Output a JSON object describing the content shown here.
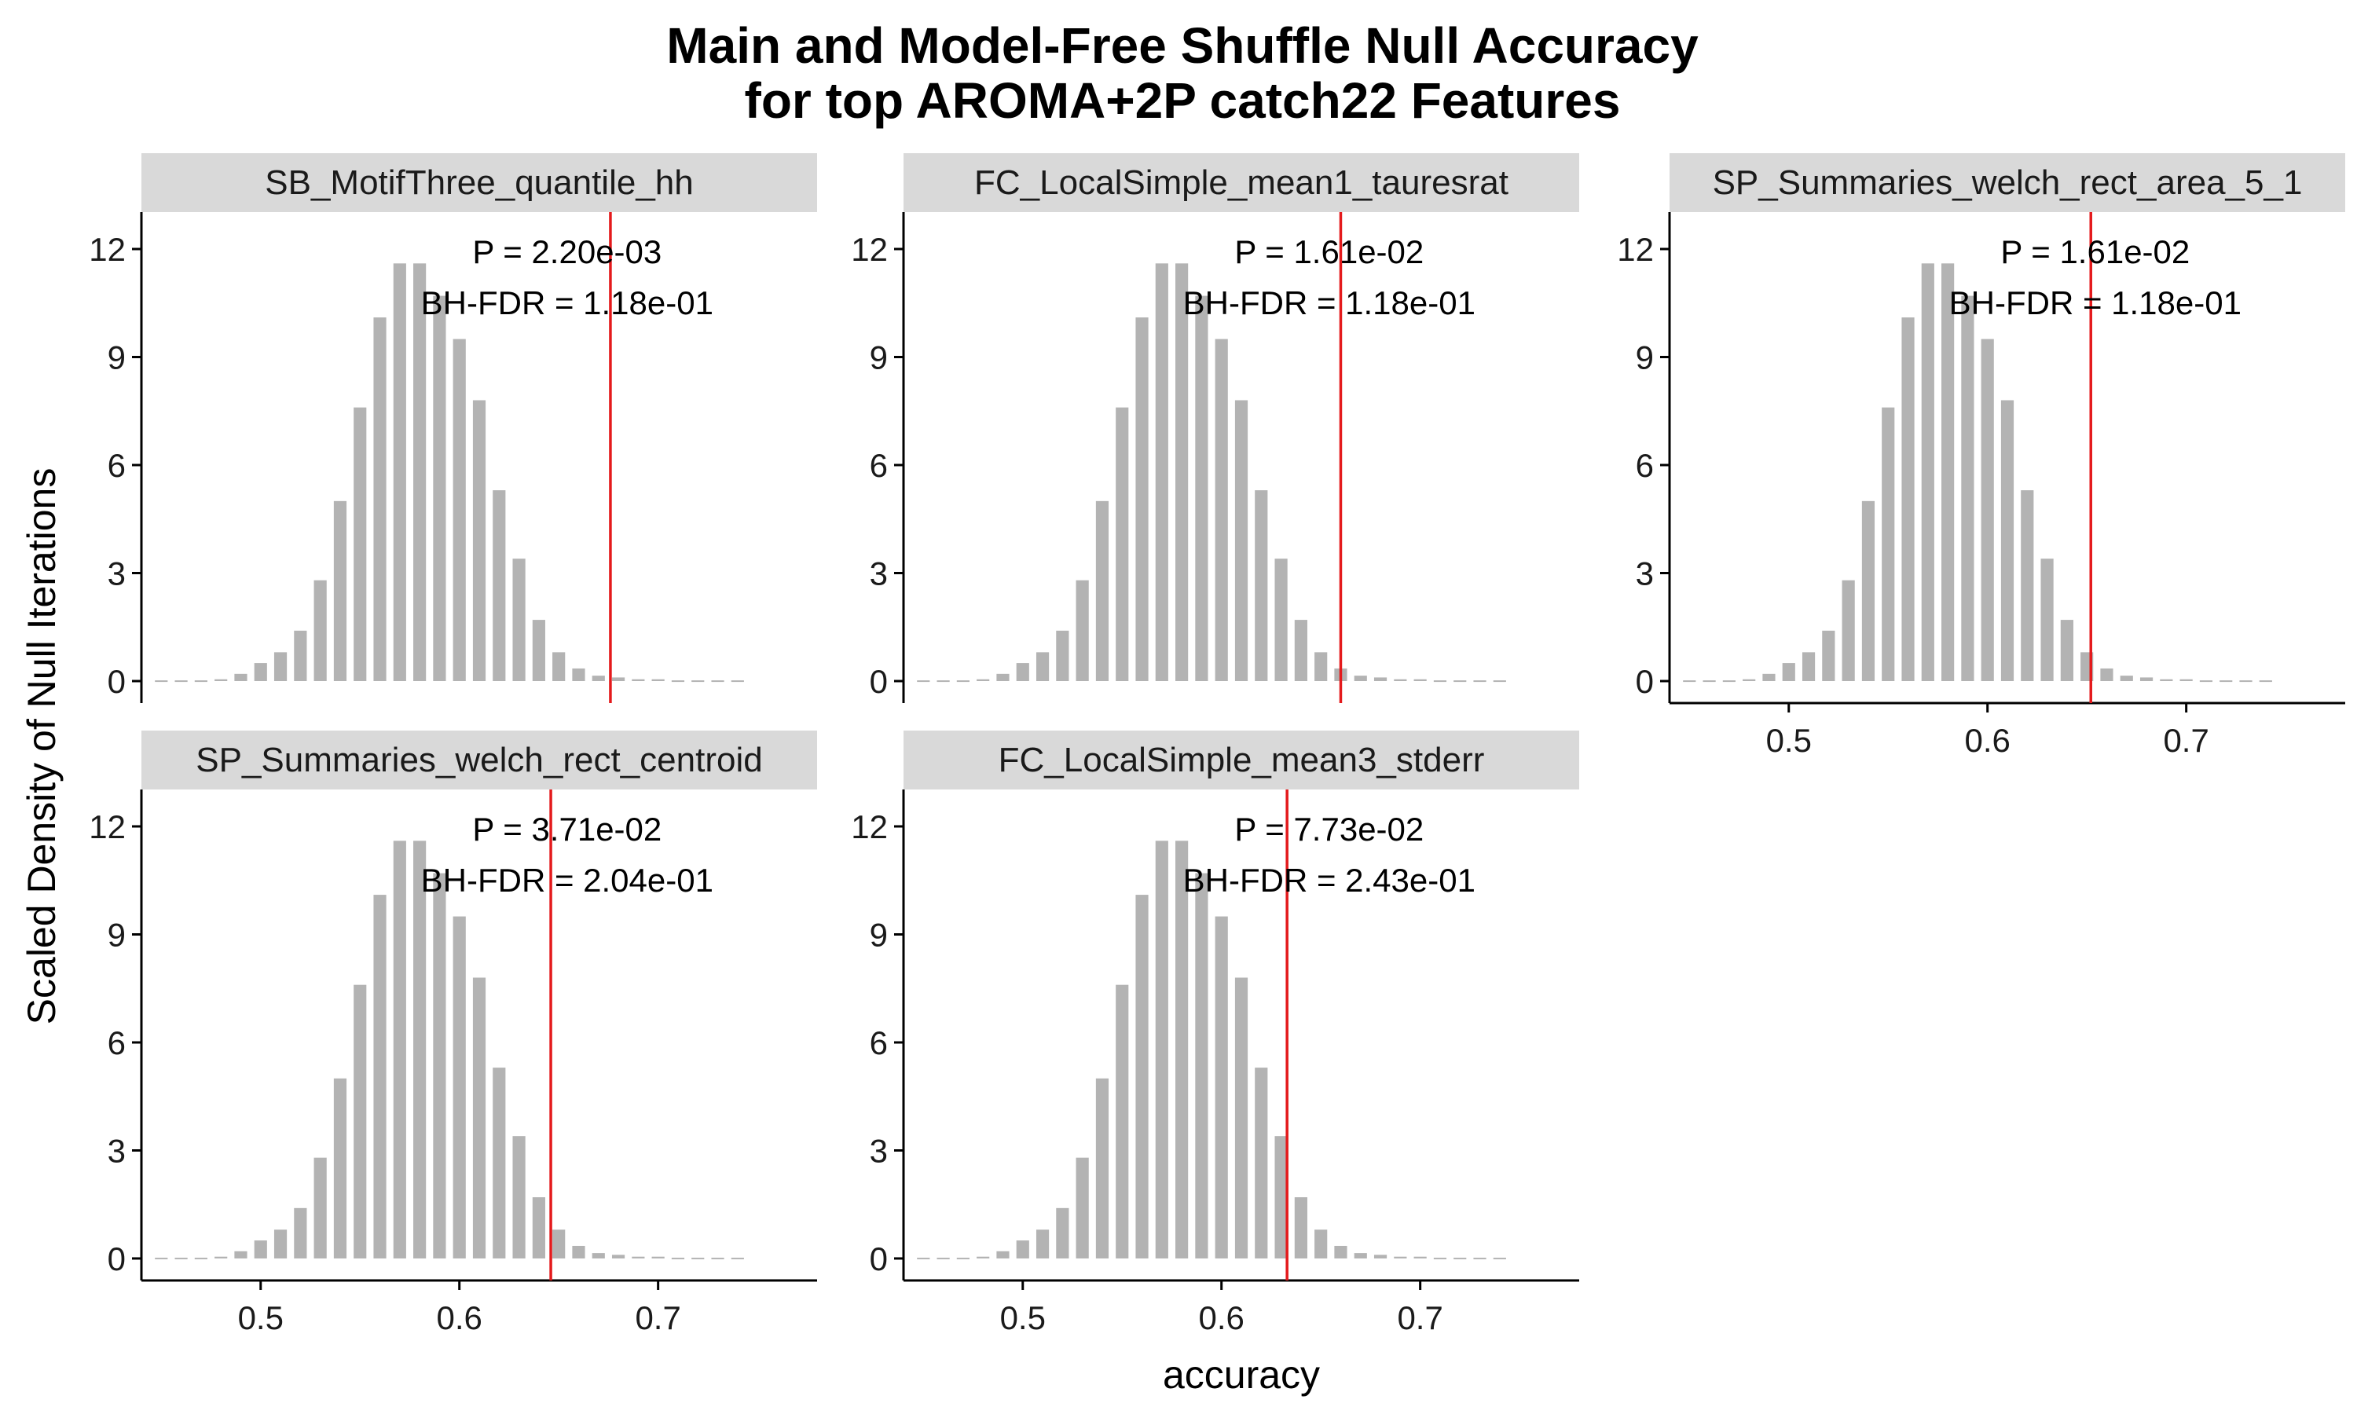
{
  "chart_data": {
    "type": "bar",
    "title": "Main and Model-Free Shuffle Null Accuracy",
    "subtitle": "for top AROMA+2P catch22 Features",
    "xlabel": "accuracy",
    "ylabel": "Scaled Density of Null Iterations",
    "xlim": [
      0.44,
      0.78
    ],
    "ylim": [
      0,
      12
    ],
    "x_ticks": [
      "0.5",
      "0.6",
      "0.7"
    ],
    "y_ticks": [
      "0",
      "3",
      "6",
      "9",
      "12"
    ],
    "x_tick_values": [
      0.5,
      0.6,
      0.7
    ],
    "y_tick_values": [
      0,
      3,
      6,
      9,
      12
    ],
    "grid": false,
    "bin_width": 0.01,
    "bins": [
      0.45,
      0.46,
      0.47,
      0.48,
      0.49,
      0.5,
      0.51,
      0.52,
      0.53,
      0.54,
      0.55,
      0.56,
      0.57,
      0.58,
      0.59,
      0.6,
      0.61,
      0.62,
      0.63,
      0.64,
      0.65,
      0.66,
      0.67,
      0.68,
      0.69,
      0.7,
      0.71,
      0.72,
      0.73,
      0.74
    ],
    "density": [
      0.02,
      0.02,
      0.02,
      0.05,
      0.2,
      0.5,
      0.8,
      1.4,
      2.8,
      5.0,
      7.6,
      10.1,
      11.6,
      11.6,
      10.7,
      9.5,
      7.8,
      5.3,
      3.4,
      1.7,
      0.8,
      0.35,
      0.15,
      0.1,
      0.05,
      0.05,
      0.02,
      0.02,
      0.02,
      0.02
    ],
    "bar_color": "#b3b3b3",
    "line_color": "#e41a1c",
    "panels": [
      {
        "label": "SB_MotifThree_quantile_hh",
        "observed_accuracy": 0.676,
        "p_text": "P = 2.20e-03",
        "fdr_text": "BH-FDR = 1.18e-01",
        "row": 0,
        "col": 0,
        "x_axis": false
      },
      {
        "label": "FC_LocalSimple_mean1_tauresrat",
        "observed_accuracy": 0.66,
        "p_text": "P = 1.61e-02",
        "fdr_text": "BH-FDR = 1.18e-01",
        "row": 0,
        "col": 1,
        "x_axis": false
      },
      {
        "label": "SP_Summaries_welch_rect_area_5_1",
        "observed_accuracy": 0.652,
        "p_text": "P = 1.61e-02",
        "fdr_text": "BH-FDR = 1.18e-01",
        "row": 0,
        "col": 2,
        "x_axis": true
      },
      {
        "label": "SP_Summaries_welch_rect_centroid",
        "observed_accuracy": 0.646,
        "p_text": "P = 3.71e-02",
        "fdr_text": "BH-FDR = 2.04e-01",
        "row": 1,
        "col": 0,
        "x_axis": true
      },
      {
        "label": "FC_LocalSimple_mean3_stderr",
        "observed_accuracy": 0.633,
        "p_text": "P = 7.73e-02",
        "fdr_text": "BH-FDR = 2.43e-01",
        "row": 1,
        "col": 1,
        "x_axis": true
      }
    ]
  }
}
